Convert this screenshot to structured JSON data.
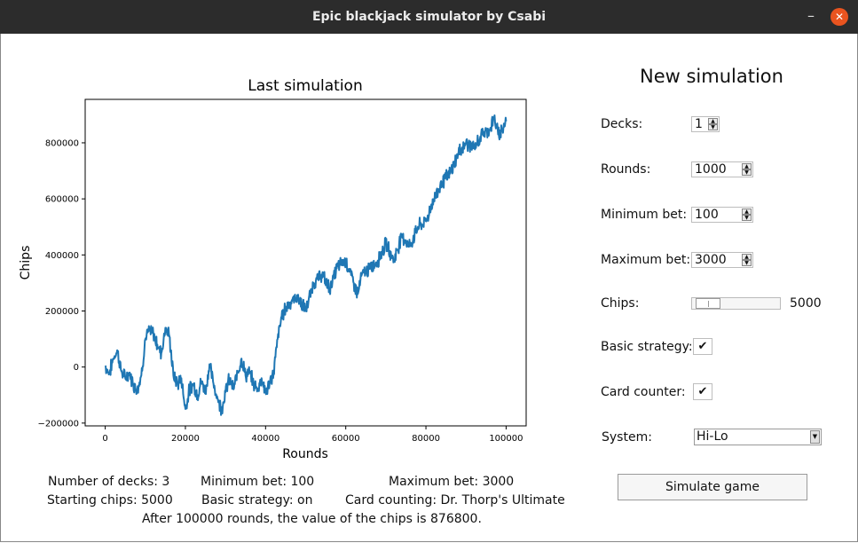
{
  "window": {
    "title": "Epic blackjack simulator by Csabi",
    "minimize_glyph": "–",
    "close_glyph": "✕"
  },
  "chart_data": {
    "type": "line",
    "title": "Last simulation",
    "xlabel": "Rounds",
    "ylabel": "Chips",
    "xlim": [
      -5000,
      105000
    ],
    "ylim": [
      -210000,
      955000
    ],
    "xticks": [
      0,
      20000,
      40000,
      60000,
      80000,
      100000
    ],
    "xtick_labels": [
      "0",
      "20000",
      "40000",
      "60000",
      "80000",
      "100000"
    ],
    "yticks": [
      -200000,
      0,
      200000,
      400000,
      600000,
      800000
    ],
    "ytick_labels": [
      "−200000",
      "0",
      "200000",
      "400000",
      "600000",
      "800000"
    ],
    "line_color": "#1f77b4",
    "series": [
      {
        "name": "Chips",
        "x": [
          0,
          1000,
          2000,
          3000,
          4000,
          5000,
          6000,
          7000,
          8000,
          9000,
          10000,
          11000,
          12000,
          13000,
          14000,
          15000,
          16000,
          17000,
          18000,
          19000,
          20000,
          21000,
          22000,
          23000,
          24000,
          25000,
          26000,
          27000,
          28000,
          29000,
          30000,
          31000,
          32000,
          33000,
          34000,
          35000,
          36000,
          37000,
          38000,
          39000,
          40000,
          41000,
          42000,
          43000,
          44000,
          45000,
          46000,
          48000,
          50000,
          52000,
          54000,
          56000,
          58000,
          60000,
          62000,
          63000,
          64000,
          66000,
          68000,
          70000,
          72000,
          74000,
          76000,
          78000,
          80000,
          82000,
          84000,
          86000,
          88000,
          90000,
          92000,
          94000,
          96000,
          97000,
          98000,
          99000,
          100000
        ],
        "values": [
          5000,
          -25000,
          30000,
          60000,
          -15000,
          -40000,
          -20000,
          -60000,
          -80000,
          -30000,
          100000,
          130000,
          120000,
          80000,
          50000,
          140000,
          110000,
          -30000,
          -60000,
          -40000,
          -150000,
          -80000,
          -60000,
          -100000,
          -50000,
          -90000,
          10000,
          -60000,
          -110000,
          -150000,
          -90000,
          -40000,
          -80000,
          -20000,
          30000,
          -30000,
          -20000,
          -60000,
          -80000,
          -40000,
          -90000,
          -60000,
          -20000,
          100000,
          180000,
          210000,
          230000,
          250000,
          200000,
          300000,
          330000,
          280000,
          360000,
          380000,
          300000,
          260000,
          330000,
          350000,
          380000,
          440000,
          380000,
          470000,
          430000,
          500000,
          520000,
          600000,
          660000,
          690000,
          760000,
          800000,
          780000,
          830000,
          850000,
          890000,
          830000,
          850000,
          876800
        ]
      }
    ]
  },
  "form": {
    "heading": "New simulation",
    "decks_label": "Decks:",
    "decks_value": "1",
    "rounds_label": "Rounds:",
    "rounds_value": "1000",
    "min_bet_label": "Minimum bet:",
    "min_bet_value": "100",
    "max_bet_label": "Maximum bet:",
    "max_bet_value": "3000",
    "chips_label": "Chips:",
    "chips_value": "5000",
    "basic_strategy_label": "Basic strategy:",
    "basic_strategy_mark": "✔",
    "card_counter_label": "Card counter:",
    "card_counter_mark": "✔",
    "system_label": "System:",
    "system_value": "Hi-Lo",
    "simulate_label": "Simulate game",
    "spin_up": "▲",
    "spin_down": "▼",
    "drop_glyph": "▼"
  },
  "stats": {
    "decks": "Number of decks: 3",
    "min_bet": "Minimum bet: 100",
    "max_bet": "Maximum bet: 3000",
    "starting_chips": "Starting chips: 5000",
    "basic_strategy": "Basic strategy: on",
    "card_counting": "Card counting: Dr. Thorp's Ultimate",
    "result": "After 100000 rounds, the value of the chips is 876800."
  }
}
